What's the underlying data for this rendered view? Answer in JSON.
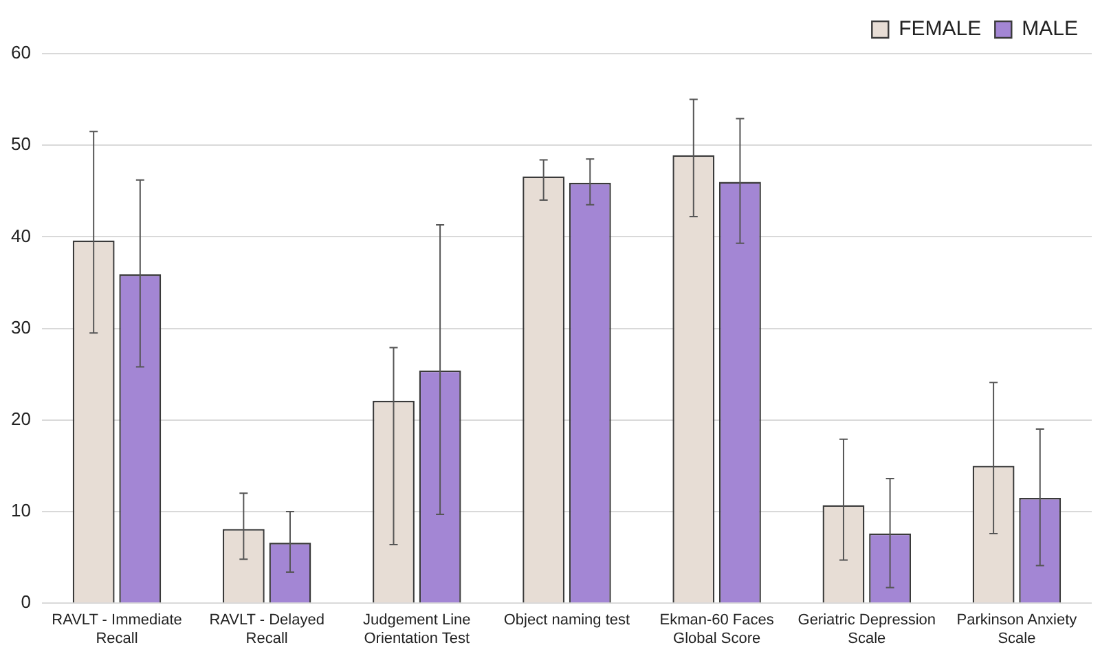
{
  "chart_data": {
    "type": "bar",
    "categories": [
      "RAVLT - Immediate Recall",
      "RAVLT - Delayed Recall",
      "Judgement Line Orientation Test",
      "Object naming test",
      "Ekman-60 Faces Global Score",
      "Geriatric Depression Scale",
      "Parkinson Anxiety Scale"
    ],
    "series": [
      {
        "name": "FEMALE",
        "color": "#e7ddd5",
        "values": [
          39.6,
          8.1,
          22.1,
          46.6,
          48.9,
          10.7,
          15.0
        ],
        "errors": [
          [
            29.5,
            51.5
          ],
          [
            4.8,
            12.0
          ],
          [
            6.4,
            27.9
          ],
          [
            44.0,
            48.4
          ],
          [
            42.2,
            55.0
          ],
          [
            4.7,
            17.9
          ],
          [
            7.6,
            24.1
          ]
        ]
      },
      {
        "name": "MALE",
        "color": "#a386d4",
        "values": [
          35.9,
          6.6,
          25.4,
          45.9,
          46.0,
          7.6,
          11.5
        ],
        "errors": [
          [
            25.8,
            46.2
          ],
          [
            3.4,
            10.0
          ],
          [
            9.7,
            41.3
          ],
          [
            43.5,
            48.5
          ],
          [
            39.3,
            52.9
          ],
          [
            1.7,
            13.6
          ],
          [
            4.1,
            19.0
          ]
        ]
      }
    ],
    "ylim": [
      0,
      60
    ],
    "yticks": [
      0,
      10,
      20,
      30,
      40,
      50,
      60
    ],
    "grid": "y",
    "legend": "top right"
  }
}
